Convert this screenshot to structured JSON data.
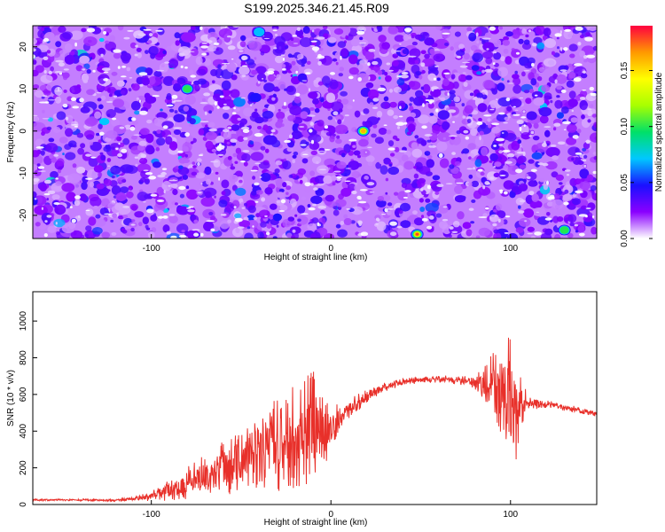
{
  "figure": {
    "title": "S199.2025.346.21.45.R09"
  },
  "chart_data": [
    {
      "type": "heatmap",
      "title": "S199.2025.346.21.45.R09",
      "xlabel": "Height of straight line (km)",
      "ylabel": "Frequency (Hz)",
      "xlim": [
        -166,
        148
      ],
      "ylim": [
        -25.5,
        25
      ],
      "xticks": [
        -100,
        0,
        100
      ],
      "yticks": [
        -20,
        -10,
        0,
        10,
        20
      ],
      "colorbar": {
        "label": "Normalized spectral amplitude",
        "range": [
          0.0,
          0.19
        ],
        "ticks": [
          "0.00",
          "0.05",
          "0.10",
          "0.15"
        ],
        "tick_values": [
          0.0,
          0.05,
          0.1,
          0.15
        ],
        "colormap": [
          "#ffffff",
          "#8a00ff",
          "#1a10ff",
          "#00c8ff",
          "#00e068",
          "#a8ff00",
          "#ffff00",
          "#ff9900",
          "#ff0040"
        ]
      },
      "description_values": {
        "typical_amplitude": 0.03,
        "max_amplitude": 0.18,
        "peaks": [
          {
            "x": -40,
            "y": 23.5,
            "value": 0.09
          },
          {
            "x": 18,
            "y": 0,
            "value": 0.17
          },
          {
            "x": 48,
            "y": -24.5,
            "value": 0.18
          },
          {
            "x": 130,
            "y": -23.5,
            "value": 0.12
          },
          {
            "x": -80,
            "y": 10,
            "value": 0.1
          }
        ]
      }
    },
    {
      "type": "line",
      "xlabel": "Height of straight line (km)",
      "ylabel": "SNR (10 * v/v)",
      "xlim": [
        -166,
        148
      ],
      "ylim": [
        0,
        1160
      ],
      "xticks": [
        -100,
        0,
        100
      ],
      "yticks": [
        0,
        200,
        400,
        600,
        800,
        1000
      ],
      "series": [
        {
          "name": "SNR",
          "color": "#e8302a",
          "x": [
            -166,
            -140,
            -120,
            -110,
            -100,
            -90,
            -80,
            -70,
            -60,
            -50,
            -40,
            -30,
            -20,
            -10,
            -5,
            0,
            5,
            10,
            20,
            30,
            40,
            50,
            60,
            70,
            80,
            90,
            95,
            100,
            102,
            105,
            110,
            120,
            130,
            140,
            148
          ],
          "values": [
            25,
            25,
            22,
            30,
            45,
            80,
            120,
            160,
            200,
            240,
            300,
            330,
            360,
            420,
            380,
            420,
            480,
            520,
            590,
            640,
            670,
            680,
            685,
            680,
            665,
            640,
            620,
            500,
            380,
            560,
            560,
            545,
            530,
            510,
            495
          ],
          "noise_amplitude": [
            6,
            6,
            6,
            12,
            25,
            60,
            90,
            120,
            150,
            180,
            220,
            260,
            300,
            330,
            220,
            110,
            80,
            60,
            40,
            25,
            20,
            18,
            20,
            25,
            35,
            180,
            280,
            420,
            480,
            150,
            40,
            25,
            20,
            18,
            15
          ]
        }
      ]
    }
  ]
}
